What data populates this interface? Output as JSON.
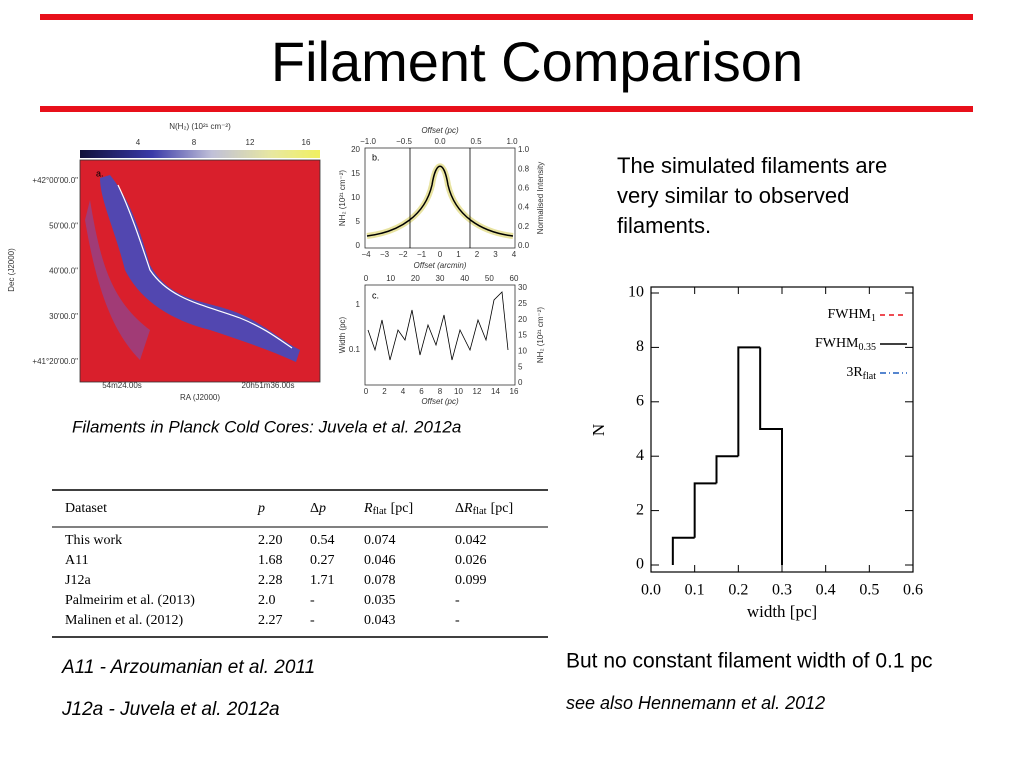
{
  "header": {
    "title": "Filament Comparison"
  },
  "figure": {
    "colorbar": {
      "label": "N(H₂)  (10²¹ cm⁻²)",
      "ticks": [
        "4",
        "8",
        "12",
        "16"
      ]
    },
    "map": {
      "panel": "a.",
      "dec_label": "Dec (J2000)",
      "ra_label": "RA (J2000)",
      "dec_ticks": [
        "+42°00'00.0\"",
        "50'00.0\"",
        "40'00.0\"",
        "30'00.0\"",
        "+41°20'00.0\""
      ],
      "ra_ticks": [
        "54m24.00s",
        "20h51m36.00s"
      ]
    },
    "panel_b": {
      "panel": "b.",
      "top_label": "Offset (pc)",
      "top_ticks": [
        "−1.0",
        "−0.5",
        "0.0",
        "0.5",
        "1.0"
      ],
      "left_label": "NH₂ (10²¹ cm⁻²)",
      "left_ticks": [
        "0",
        "5",
        "10",
        "15",
        "20"
      ],
      "right_label": "Normalised Intensity",
      "right_ticks": [
        "0.0",
        "0.2",
        "0.4",
        "0.6",
        "0.8",
        "1.0"
      ],
      "bottom_label": "Offset (arcmin)",
      "bottom_ticks": [
        "−4",
        "−3",
        "−2",
        "−1",
        "0",
        "1",
        "2",
        "3",
        "4"
      ]
    },
    "panel_c": {
      "panel": "c.",
      "top_ticks": [
        "0",
        "10",
        "20",
        "30",
        "40",
        "50",
        "60"
      ],
      "left_label": "Width (pc)",
      "left_ticks": [
        "0.1",
        "1"
      ],
      "right_label": "NH₂ (10²¹ cm⁻²)",
      "right_ticks": [
        "0",
        "5",
        "10",
        "15",
        "20",
        "25",
        "30"
      ],
      "bottom_label": "Offset (pc)",
      "bottom_ticks": [
        "0",
        "2",
        "4",
        "6",
        "8",
        "10",
        "12",
        "14",
        "16"
      ]
    },
    "caption": "Filaments in Planck Cold Cores: Juvela et al. 2012a"
  },
  "table": {
    "header": [
      {
        "text": "Dataset"
      },
      {
        "symbol": "p"
      },
      {
        "text": "Δ",
        "symbol": "p"
      },
      {
        "symbol": "R",
        "sub": "flat",
        "unit": "[pc]"
      },
      {
        "text": "Δ",
        "symbol": "R",
        "sub": "flat",
        "unit": "[pc]"
      }
    ],
    "rows": [
      [
        "This work",
        "2.20",
        "0.54",
        "0.074",
        "0.042"
      ],
      [
        "A11",
        "1.68",
        "0.27",
        "0.046",
        "0.026"
      ],
      [
        "J12a",
        "2.28",
        "1.71",
        "0.078",
        "0.099"
      ],
      [
        "Palmeirim et al. (2013)",
        "2.0",
        "-",
        "0.035",
        "-"
      ],
      [
        "Malinen et al. (2012)",
        "2.27",
        "-",
        "0.043",
        "-"
      ]
    ]
  },
  "notes": [
    "A11 - Arzoumanian et al. 2011",
    "J12a - Juvela et al. 2012a"
  ],
  "statement": [
    "The simulated filaments are",
    "very similar to observed",
    "filaments."
  ],
  "conclusion": {
    "text": "But no constant filament width of 0.1 pc",
    "reference": "see also Hennemann et al. 2012"
  },
  "chart_data": {
    "type": "histogram",
    "xlabel": "width [pc]",
    "ylabel": "N",
    "bins": [
      0.05,
      0.1,
      0.15,
      0.2,
      0.25,
      0.3
    ],
    "counts": [
      1,
      3,
      4,
      8,
      5
    ],
    "color": "#000000",
    "xlim": [
      0,
      0.6
    ],
    "ylim": [
      0,
      10
    ],
    "xticks": [
      {
        "value": 0,
        "label": "0.0"
      },
      0.1,
      0.2,
      0.3,
      0.4,
      0.5,
      0.6
    ],
    "yticks": [
      0,
      2,
      4,
      6,
      8,
      10
    ],
    "legend_position": "upper right",
    "legend": [
      {
        "name": "FWHM",
        "sub": "1",
        "color": "#e8101a",
        "dash": "dashed"
      },
      {
        "name": "FWHM",
        "sub": "0.35",
        "color": "#000000",
        "dash": "solid"
      },
      {
        "name": "3R",
        "sub": "flat",
        "color": "#1f5fbf",
        "dash": "dashdot"
      }
    ]
  }
}
